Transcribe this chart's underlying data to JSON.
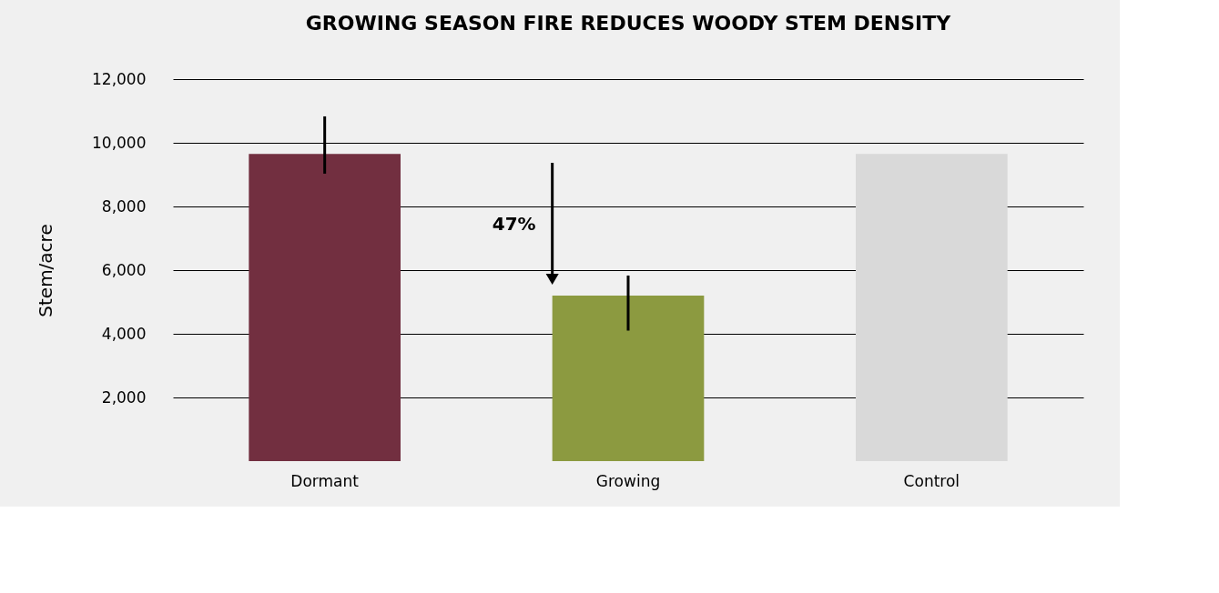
{
  "chart_data": {
    "type": "bar",
    "title": "GROWING SEASON FIRE REDUCES WOODY STEM DENSITY",
    "ylabel": "Stem/acre",
    "categories": [
      "Dormant",
      "Growing",
      "Control"
    ],
    "values": [
      9650,
      5200,
      9650
    ],
    "colors": [
      "#722f40",
      "#8c9a40",
      "#d9d9d9"
    ],
    "errors": [
      [
        9030,
        10830
      ],
      [
        4100,
        5830
      ],
      null
    ],
    "ylim": [
      0,
      12000
    ],
    "yticks": [
      {
        "value": 2000,
        "label": "2,000"
      },
      {
        "value": 4000,
        "label": "4,000"
      },
      {
        "value": 6000,
        "label": "6,000"
      },
      {
        "value": 8000,
        "label": "8,000"
      },
      {
        "value": 10000,
        "label": "10,000"
      },
      {
        "value": 12000,
        "label": "12,000"
      }
    ],
    "grid": "y",
    "annotations": [
      "47%"
    ]
  }
}
